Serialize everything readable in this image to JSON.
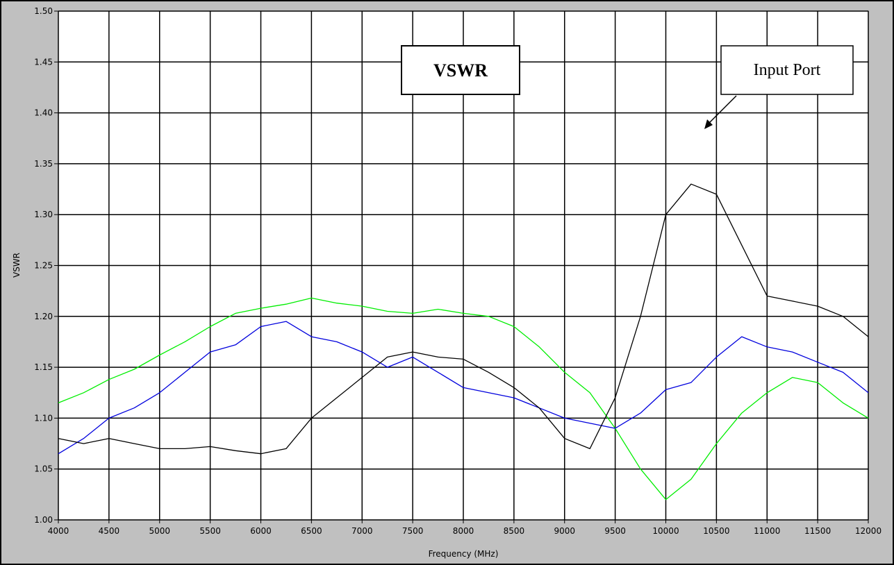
{
  "chart_data": {
    "type": "line",
    "title": "",
    "xlabel": "Frequency (MHz)",
    "ylabel": "VSWR",
    "xlim": [
      4000,
      12000
    ],
    "ylim": [
      1.0,
      1.5
    ],
    "x_ticks": [
      4000,
      4500,
      5000,
      5500,
      6000,
      6500,
      7000,
      7500,
      8000,
      8500,
      9000,
      9500,
      10000,
      10500,
      11000,
      11500,
      12000
    ],
    "y_ticks": [
      "1.00",
      "1.05",
      "1.10",
      "1.15",
      "1.20",
      "1.25",
      "1.30",
      "1.35",
      "1.40",
      "1.45",
      "1.50"
    ],
    "grid": true,
    "annotations": [
      {
        "text": "VSWR",
        "style": "bold-box"
      },
      {
        "text": "Input Port",
        "style": "box-with-arrow",
        "arrow_target": [
          10300,
          1.39
        ]
      }
    ],
    "series": [
      {
        "color": "#00ee00",
        "x": [
          4000,
          4250,
          4500,
          4750,
          5000,
          5250,
          5500,
          5750,
          6000,
          6250,
          6500,
          6750,
          7000,
          7250,
          7500,
          7750,
          8000,
          8250,
          8500,
          8750,
          9000,
          9250,
          9500,
          9750,
          10000,
          10250,
          10500,
          10750,
          11000,
          11250,
          11500,
          11750,
          12000
        ],
        "values": [
          1.115,
          1.125,
          1.138,
          1.148,
          1.162,
          1.175,
          1.19,
          1.203,
          1.208,
          1.212,
          1.218,
          1.213,
          1.21,
          1.205,
          1.203,
          1.207,
          1.203,
          1.2,
          1.19,
          1.17,
          1.145,
          1.125,
          1.09,
          1.05,
          1.02,
          1.04,
          1.075,
          1.105,
          1.125,
          1.14,
          1.135,
          1.115,
          1.1
        ]
      },
      {
        "color": "#0000dd",
        "x": [
          4000,
          4250,
          4500,
          4750,
          5000,
          5250,
          5500,
          5750,
          6000,
          6250,
          6500,
          6750,
          7000,
          7250,
          7500,
          7750,
          8000,
          8250,
          8500,
          8750,
          9000,
          9250,
          9500,
          9750,
          10000,
          10250,
          10500,
          10750,
          11000,
          11250,
          11500,
          11750,
          12000
        ],
        "values": [
          1.065,
          1.08,
          1.1,
          1.11,
          1.125,
          1.145,
          1.165,
          1.172,
          1.19,
          1.195,
          1.18,
          1.175,
          1.165,
          1.15,
          1.16,
          1.145,
          1.13,
          1.125,
          1.12,
          1.11,
          1.1,
          1.095,
          1.09,
          1.105,
          1.128,
          1.135,
          1.16,
          1.18,
          1.17,
          1.165,
          1.155,
          1.145,
          1.125
        ]
      },
      {
        "color": "#000000",
        "x": [
          4000,
          4250,
          4500,
          4750,
          5000,
          5250,
          5500,
          5750,
          6000,
          6250,
          6500,
          6750,
          7000,
          7250,
          7500,
          7750,
          8000,
          8250,
          8500,
          8750,
          9000,
          9250,
          9500,
          9750,
          10000,
          10250,
          10500,
          10750,
          11000,
          11250,
          11500,
          11750,
          12000
        ],
        "values": [
          1.08,
          1.075,
          1.08,
          1.075,
          1.07,
          1.07,
          1.072,
          1.068,
          1.065,
          1.07,
          1.1,
          1.12,
          1.14,
          1.16,
          1.165,
          1.16,
          1.158,
          1.145,
          1.13,
          1.11,
          1.08,
          1.07,
          1.12,
          1.2,
          1.3,
          1.33,
          1.32,
          1.27,
          1.22,
          1.215,
          1.21,
          1.2,
          1.18
        ]
      }
    ]
  }
}
